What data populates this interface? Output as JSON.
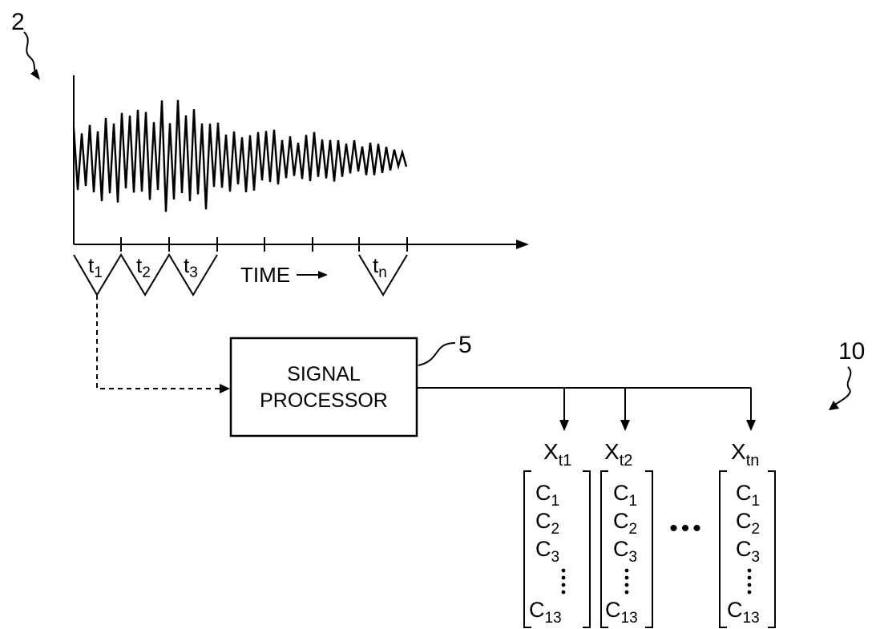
{
  "figure": {
    "ref_waveform": "2",
    "ref_processor": "5",
    "ref_vectors": "10"
  },
  "timeline": {
    "time_label": "TIME",
    "windows": [
      {
        "t": "t",
        "sub": "1"
      },
      {
        "t": "t",
        "sub": "2"
      },
      {
        "t": "t",
        "sub": "3"
      },
      {
        "t": "t",
        "sub": "n"
      }
    ]
  },
  "processor": {
    "line1": "SIGNAL",
    "line2": "PROCESSOR"
  },
  "vectors": [
    {
      "x": "X",
      "sub": "t1"
    },
    {
      "x": "X",
      "sub": "t2"
    },
    {
      "x": "X",
      "sub": "tn"
    }
  ],
  "coefficients": {
    "letter": "C",
    "subs": [
      "1",
      "2",
      "3",
      "13"
    ]
  },
  "between_vectors": "•••"
}
